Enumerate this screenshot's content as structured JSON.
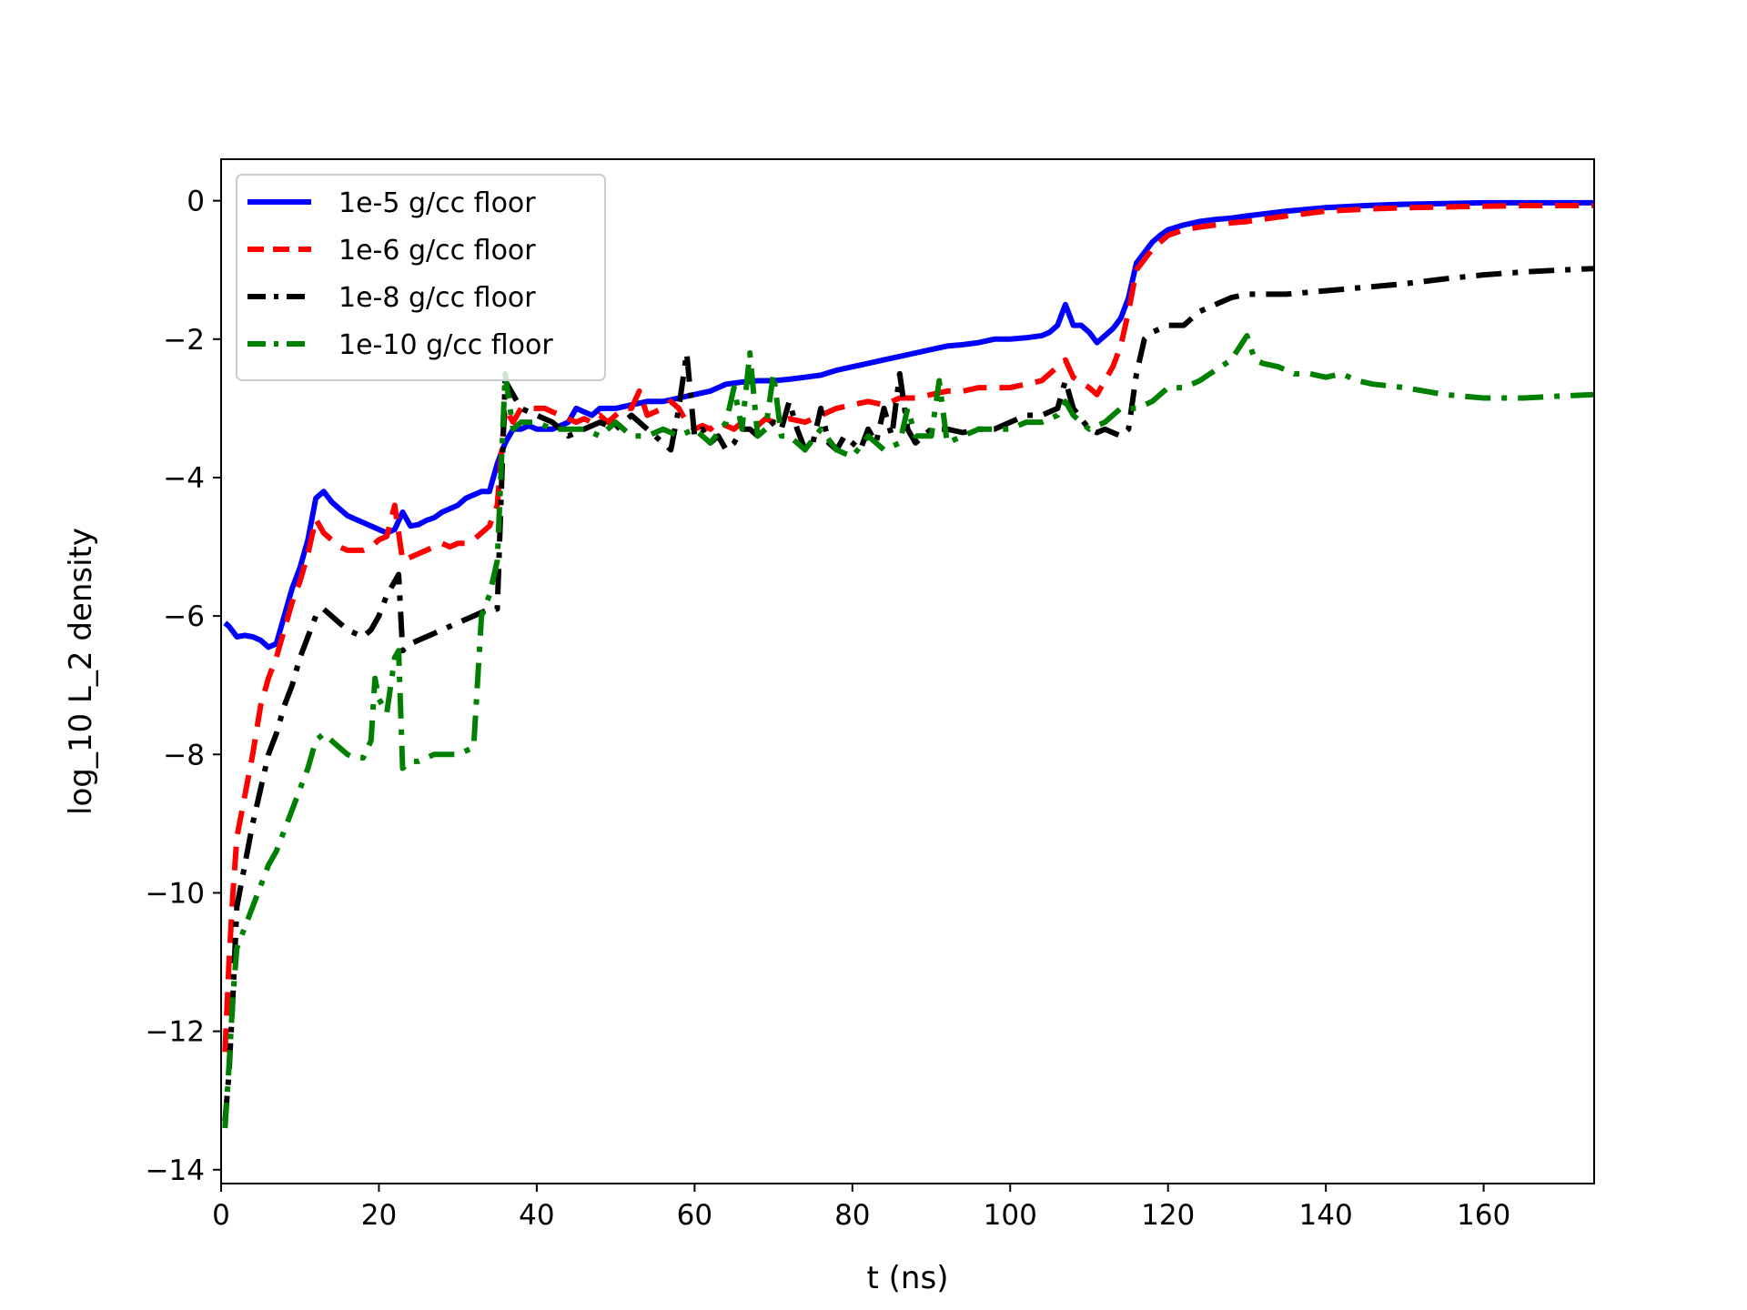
{
  "chart_data": {
    "type": "line",
    "title": "",
    "xlabel": "t (ns)",
    "ylabel": "log_10 L_2 density",
    "xlim": [
      0,
      174
    ],
    "ylim": [
      -14.2,
      0.6
    ],
    "xticks": [
      0,
      20,
      40,
      60,
      80,
      100,
      120,
      140,
      160
    ],
    "yticks": [
      0,
      -2,
      -4,
      -6,
      -8,
      -10,
      -12,
      -14
    ],
    "xtick_labels": [
      "0",
      "20",
      "40",
      "60",
      "80",
      "100",
      "120",
      "140",
      "160"
    ],
    "ytick_labels": [
      "0",
      "−2",
      "−4",
      "−6",
      "−8",
      "−10",
      "−12",
      "−14"
    ],
    "grid": false,
    "legend_position": "upper-left",
    "series": [
      {
        "name": "1e-5 g/cc floor",
        "color": "#0000ff",
        "style": "solid",
        "x": [
          0.5,
          1,
          2,
          3,
          4,
          5,
          6,
          7,
          8,
          9,
          10,
          11,
          12,
          13,
          14,
          15,
          16,
          17,
          18,
          19,
          20,
          21,
          22,
          23,
          24,
          25,
          26,
          27,
          28,
          29,
          30,
          31,
          32,
          33,
          34,
          35,
          36,
          37,
          38,
          39,
          40,
          42,
          44,
          45,
          46,
          47,
          48,
          50,
          52,
          54,
          56,
          58,
          60,
          62,
          64,
          66,
          68,
          70,
          72,
          74,
          76,
          78,
          80,
          82,
          84,
          86,
          88,
          90,
          92,
          94,
          96,
          98,
          100,
          102,
          104,
          105,
          106,
          107,
          108,
          109,
          110,
          111,
          112,
          113,
          114,
          115,
          116,
          117,
          118,
          119,
          120,
          122,
          124,
          126,
          128,
          130,
          135,
          140,
          145,
          150,
          155,
          160,
          165,
          170,
          174
        ],
        "y": [
          -6.1,
          -6.15,
          -6.3,
          -6.28,
          -6.3,
          -6.35,
          -6.45,
          -6.4,
          -6.0,
          -5.6,
          -5.3,
          -4.9,
          -4.3,
          -4.2,
          -4.35,
          -4.45,
          -4.55,
          -4.6,
          -4.65,
          -4.7,
          -4.75,
          -4.8,
          -4.75,
          -4.5,
          -4.7,
          -4.68,
          -4.62,
          -4.58,
          -4.5,
          -4.45,
          -4.4,
          -4.3,
          -4.25,
          -4.2,
          -4.2,
          -3.8,
          -3.5,
          -3.3,
          -3.3,
          -3.25,
          -3.3,
          -3.3,
          -3.2,
          -3.0,
          -3.05,
          -3.1,
          -3.0,
          -3.0,
          -2.95,
          -2.9,
          -2.9,
          -2.85,
          -2.8,
          -2.75,
          -2.65,
          -2.62,
          -2.6,
          -2.6,
          -2.58,
          -2.55,
          -2.52,
          -2.45,
          -2.4,
          -2.35,
          -2.3,
          -2.25,
          -2.2,
          -2.15,
          -2.1,
          -2.08,
          -2.05,
          -2.0,
          -2.0,
          -1.98,
          -1.95,
          -1.9,
          -1.8,
          -1.5,
          -1.8,
          -1.8,
          -1.9,
          -2.05,
          -1.95,
          -1.85,
          -1.7,
          -1.4,
          -0.9,
          -0.75,
          -0.6,
          -0.5,
          -0.42,
          -0.35,
          -0.3,
          -0.27,
          -0.25,
          -0.22,
          -0.15,
          -0.1,
          -0.07,
          -0.05,
          -0.04,
          -0.03,
          -0.03,
          -0.03,
          -0.03
        ]
      },
      {
        "name": "1e-6 g/cc floor",
        "color": "#ff0000",
        "style": "dashed",
        "x": [
          0.5,
          1,
          1.5,
          2,
          3,
          4,
          5,
          6,
          7,
          8,
          9,
          10,
          11,
          12,
          13,
          14,
          15,
          16,
          17,
          18,
          19,
          20,
          21,
          22,
          23,
          24,
          25,
          26,
          27,
          28,
          29,
          30,
          31,
          32,
          33,
          34,
          35,
          36,
          37,
          38,
          39,
          40,
          41,
          42,
          43,
          44,
          45,
          46,
          47,
          48,
          49,
          50,
          51,
          52,
          53,
          54,
          55,
          56,
          57,
          58,
          59,
          60,
          61,
          62,
          63,
          64,
          65,
          66,
          67,
          68,
          69,
          70,
          72,
          74,
          76,
          78,
          80,
          82,
          84,
          86,
          88,
          90,
          92,
          94,
          96,
          98,
          100,
          102,
          104,
          106,
          107,
          108,
          110,
          111,
          112,
          113,
          114,
          115,
          116,
          117,
          118,
          119,
          120,
          122,
          124,
          126,
          128,
          130,
          135,
          140,
          145,
          150,
          155,
          160,
          165,
          170,
          174
        ],
        "y": [
          -12.3,
          -11.0,
          -10.0,
          -9.2,
          -8.6,
          -8.0,
          -7.3,
          -6.9,
          -6.6,
          -6.2,
          -5.8,
          -5.5,
          -5.1,
          -4.6,
          -4.8,
          -4.9,
          -5.0,
          -5.05,
          -5.05,
          -5.05,
          -5.0,
          -4.9,
          -4.85,
          -4.4,
          -5.2,
          -5.15,
          -5.1,
          -5.05,
          -5.0,
          -4.95,
          -5.0,
          -4.95,
          -4.95,
          -4.9,
          -4.8,
          -4.7,
          -4.4,
          -3.0,
          -3.2,
          -3.0,
          -3.0,
          -3.0,
          -3.0,
          -3.05,
          -3.1,
          -3.15,
          -3.2,
          -3.15,
          -3.2,
          -3.1,
          -3.2,
          -3.1,
          -3.0,
          -3.0,
          -2.75,
          -3.1,
          -3.05,
          -3.0,
          -2.9,
          -3.0,
          -3.2,
          -3.3,
          -3.25,
          -3.3,
          -3.2,
          -3.25,
          -3.3,
          -3.2,
          -3.2,
          -3.25,
          -3.15,
          -3.2,
          -3.15,
          -3.2,
          -3.1,
          -3.0,
          -2.95,
          -2.9,
          -2.95,
          -2.85,
          -2.85,
          -2.8,
          -2.75,
          -2.75,
          -2.7,
          -2.7,
          -2.7,
          -2.65,
          -2.6,
          -2.4,
          -2.3,
          -2.55,
          -2.7,
          -2.8,
          -2.6,
          -2.4,
          -2.1,
          -1.6,
          -1.0,
          -0.85,
          -0.7,
          -0.6,
          -0.5,
          -0.42,
          -0.38,
          -0.35,
          -0.32,
          -0.3,
          -0.22,
          -0.15,
          -0.12,
          -0.1,
          -0.09,
          -0.08,
          -0.07,
          -0.07,
          -0.07
        ]
      },
      {
        "name": "1e-8 g/cc floor",
        "color": "#000000",
        "style": "dashdot",
        "x": [
          0.5,
          1,
          1.5,
          2,
          3,
          4,
          5,
          6,
          7,
          8,
          9,
          10,
          11,
          12,
          13,
          14,
          15,
          16,
          17,
          18,
          19,
          20,
          21,
          22,
          22.5,
          23,
          24,
          25,
          26,
          27,
          28,
          29,
          30,
          31,
          32,
          33,
          34,
          35,
          36,
          37,
          38,
          40,
          42,
          44,
          46,
          48,
          50,
          52,
          54,
          56,
          57,
          58,
          59,
          60,
          61,
          62,
          63,
          64,
          65,
          66,
          67,
          68,
          69,
          70,
          71,
          72,
          73,
          74,
          75,
          76,
          77,
          78,
          79,
          80,
          81,
          82,
          83,
          84,
          85,
          86,
          87,
          88,
          89,
          90,
          92,
          94,
          96,
          98,
          100,
          102,
          104,
          106,
          107,
          108,
          110,
          111,
          112,
          113,
          114,
          115,
          116,
          117,
          118,
          119,
          120,
          122,
          124,
          126,
          128,
          130,
          135,
          140,
          145,
          150,
          155,
          160,
          165,
          170,
          174
        ],
        "y": [
          -13.3,
          -12.6,
          -11.5,
          -10.2,
          -9.6,
          -9.0,
          -8.5,
          -8.0,
          -7.7,
          -7.3,
          -7.0,
          -6.6,
          -6.3,
          -6.0,
          -5.9,
          -6.0,
          -6.1,
          -6.2,
          -6.25,
          -6.3,
          -6.2,
          -6.0,
          -5.7,
          -5.5,
          -5.4,
          -6.5,
          -6.4,
          -6.35,
          -6.3,
          -6.25,
          -6.2,
          -6.15,
          -6.1,
          -6.05,
          -6.0,
          -5.95,
          -5.9,
          -5.9,
          -2.6,
          -2.8,
          -3.0,
          -3.1,
          -3.2,
          -3.4,
          -3.3,
          -3.2,
          -3.3,
          -3.1,
          -3.3,
          -3.5,
          -3.6,
          -3.0,
          -2.2,
          -3.4,
          -3.3,
          -3.5,
          -3.4,
          -3.6,
          -3.5,
          -3.3,
          -3.3,
          -3.4,
          -3.3,
          -3.2,
          -3.3,
          -2.9,
          -3.3,
          -3.6,
          -3.5,
          -3.0,
          -3.5,
          -3.6,
          -3.4,
          -3.5,
          -3.6,
          -3.3,
          -3.5,
          -3.0,
          -3.4,
          -2.5,
          -3.3,
          -3.5,
          -3.4,
          -3.3,
          -3.3,
          -3.35,
          -3.3,
          -3.3,
          -3.2,
          -3.1,
          -3.1,
          -3.0,
          -2.6,
          -3.0,
          -3.3,
          -3.35,
          -3.3,
          -3.35,
          -3.4,
          -3.3,
          -2.5,
          -2.0,
          -1.9,
          -1.85,
          -1.8,
          -1.8,
          -1.6,
          -1.5,
          -1.4,
          -1.35,
          -1.35,
          -1.3,
          -1.25,
          -1.2,
          -1.13,
          -1.07,
          -1.03,
          -1.0,
          -0.98
        ]
      },
      {
        "name": "1e-10 g/cc floor",
        "color": "#008000",
        "style": "dashdot",
        "x": [
          0.5,
          1,
          1.5,
          2,
          3,
          4,
          5,
          6,
          7,
          8,
          9,
          10,
          11,
          12,
          13,
          14,
          15,
          16,
          17,
          18,
          19,
          19.5,
          20,
          21,
          22,
          22.5,
          23,
          24,
          25,
          26,
          27,
          28,
          29,
          30,
          31,
          32,
          33,
          34,
          35,
          36,
          37,
          38,
          40,
          42,
          44,
          46,
          48,
          50,
          52,
          54,
          56,
          58,
          60,
          62,
          64,
          65,
          66,
          67,
          68,
          69,
          70,
          71,
          72,
          74,
          76,
          78,
          80,
          82,
          84,
          86,
          87,
          88,
          90,
          91,
          92,
          94,
          96,
          98,
          100,
          102,
          104,
          106,
          107,
          108,
          110,
          112,
          114,
          116,
          118,
          120,
          122,
          124,
          126,
          128,
          130,
          131,
          132,
          134,
          136,
          138,
          140,
          142,
          144,
          146,
          150,
          155,
          160,
          165,
          170,
          174
        ],
        "y": [
          -13.4,
          -12.5,
          -11.5,
          -10.8,
          -10.5,
          -10.2,
          -9.9,
          -9.6,
          -9.4,
          -9.1,
          -8.8,
          -8.5,
          -8.2,
          -7.8,
          -7.7,
          -7.8,
          -7.9,
          -8.0,
          -8.05,
          -8.05,
          -7.8,
          -6.9,
          -7.2,
          -7.4,
          -6.6,
          -6.5,
          -8.2,
          -8.1,
          -8.1,
          -8.05,
          -8.0,
          -8.0,
          -8.0,
          -8.0,
          -7.95,
          -7.9,
          -6.0,
          -5.7,
          -5.2,
          -2.5,
          -3.3,
          -3.2,
          -3.2,
          -3.3,
          -3.3,
          -3.3,
          -3.4,
          -3.2,
          -3.4,
          -3.4,
          -3.3,
          -3.4,
          -3.3,
          -3.5,
          -3.2,
          -2.7,
          -3.3,
          -2.2,
          -3.4,
          -3.3,
          -2.5,
          -3.4,
          -3.4,
          -3.6,
          -3.3,
          -3.6,
          -3.7,
          -3.4,
          -3.6,
          -3.5,
          -3.0,
          -3.4,
          -3.4,
          -2.6,
          -3.5,
          -3.4,
          -3.3,
          -3.3,
          -3.3,
          -3.2,
          -3.2,
          -3.1,
          -2.9,
          -3.1,
          -3.3,
          -3.2,
          -3.0,
          -3.0,
          -2.9,
          -2.7,
          -2.7,
          -2.6,
          -2.45,
          -2.3,
          -1.95,
          -2.3,
          -2.35,
          -2.4,
          -2.5,
          -2.5,
          -2.55,
          -2.5,
          -2.6,
          -2.65,
          -2.7,
          -2.8,
          -2.85,
          -2.85,
          -2.82,
          -2.8
        ]
      }
    ]
  }
}
